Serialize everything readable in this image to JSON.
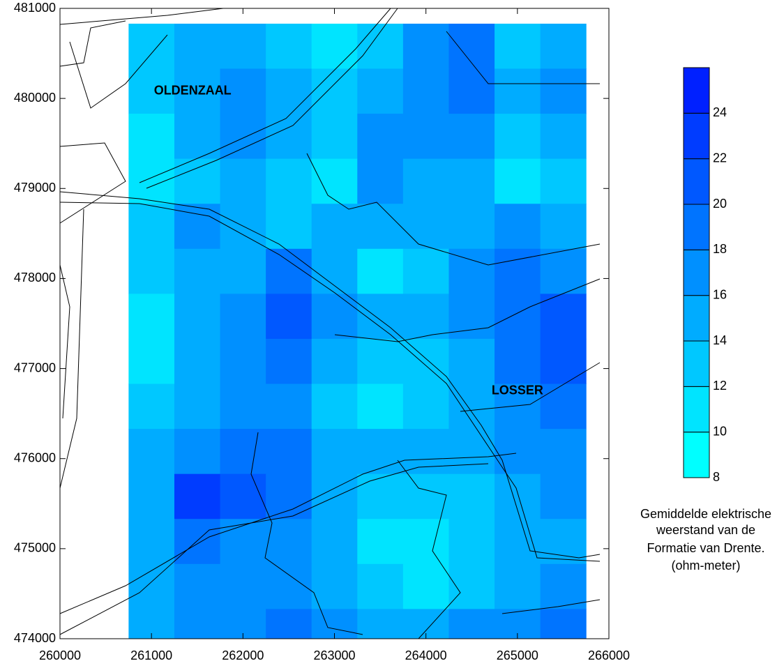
{
  "chart_data": {
    "type": "contour",
    "xlim": [
      260000,
      266000
    ],
    "ylim": [
      474000,
      481000
    ],
    "xticks": [
      260000,
      261000,
      262000,
      263000,
      264000,
      265000,
      266000
    ],
    "yticks": [
      474000,
      475000,
      476000,
      477000,
      478000,
      479000,
      480000,
      481000
    ],
    "grid_x_edges": [
      260750,
      261250,
      261750,
      262250,
      262750,
      263250,
      263750,
      264250,
      264750,
      265250,
      265750
    ],
    "grid_y_edges": [
      480830,
      480330,
      479830,
      479330,
      478830,
      478330,
      477830,
      477330,
      476830,
      476330,
      475830,
      475330,
      474830,
      474330,
      474000
    ],
    "values": [
      [
        13,
        14,
        15,
        12,
        11,
        12,
        17,
        18,
        13,
        14
      ],
      [
        12,
        15,
        17,
        15,
        13,
        14,
        16,
        19,
        14,
        16
      ],
      [
        11,
        14,
        16,
        14,
        13,
        17,
        17,
        16,
        13,
        14
      ],
      [
        10,
        13,
        14,
        13,
        11,
        17,
        15,
        14,
        11,
        12
      ],
      [
        12,
        16,
        14,
        12,
        14,
        15,
        14,
        15,
        16,
        15
      ],
      [
        12,
        15,
        14,
        18,
        15,
        11,
        13,
        16,
        18,
        17
      ],
      [
        11,
        14,
        16,
        21,
        16,
        14,
        14,
        16,
        19,
        21
      ],
      [
        11,
        14,
        16,
        18,
        14,
        13,
        13,
        14,
        18,
        20
      ],
      [
        13,
        15,
        17,
        16,
        13,
        11,
        13,
        14,
        17,
        19
      ],
      [
        14,
        16,
        19,
        18,
        15,
        14,
        14,
        15,
        16,
        17
      ],
      [
        15,
        22,
        20,
        19,
        15,
        13,
        13,
        13,
        15,
        16
      ],
      [
        14,
        18,
        17,
        16,
        14,
        11,
        10,
        12,
        14,
        15
      ],
      [
        15,
        16,
        16,
        17,
        15,
        12,
        11,
        13,
        15,
        16
      ],
      [
        15,
        16,
        17,
        18,
        17,
        15,
        15,
        16,
        17,
        18
      ]
    ],
    "levels": [
      8,
      10,
      12,
      14,
      16,
      18,
      20,
      22,
      24,
      26
    ],
    "level_colors": [
      "#00ffff",
      "#00e4ff",
      "#00c8ff",
      "#00acff",
      "#0090ff",
      "#0074ff",
      "#0058ff",
      "#003cff",
      "#0020ff"
    ],
    "colorbar_ticks": [
      8,
      10,
      12,
      14,
      16,
      18,
      20,
      22,
      24
    ],
    "places": [
      {
        "label": "OLDENZAAL",
        "x": 261450,
        "y": 480080
      },
      {
        "label": "LOSSER",
        "x": 265000,
        "y": 476750
      }
    ],
    "legend_title_lines": [
      "Gemiddelde elektrische",
      "weerstand van de",
      "Formatie van Drente.",
      "(ohm-meter)"
    ]
  }
}
